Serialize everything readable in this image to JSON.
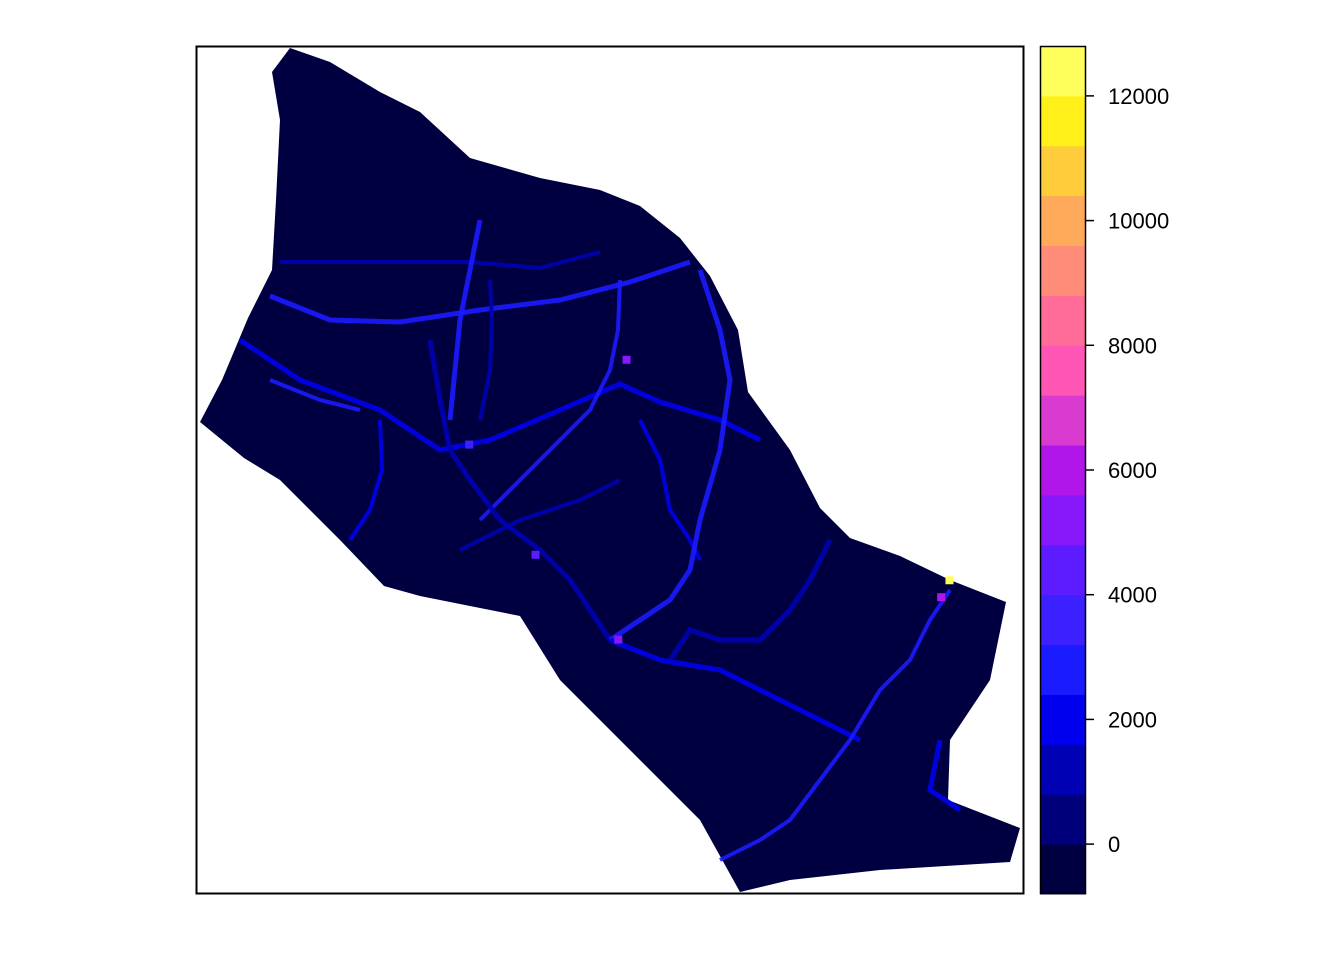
{
  "chart_data": {
    "type": "heatmap",
    "title": "",
    "xlabel": "",
    "ylabel": "",
    "legend_placement": "right",
    "grid": false,
    "colorbar": {
      "min": -800,
      "max": 12800,
      "step": 800,
      "colors": [
        "#000040",
        "#00007a",
        "#0000b4",
        "#0000ee",
        "#1b1bff",
        "#3d20ff",
        "#5c1cff",
        "#8718fa",
        "#b016ea",
        "#d93bd0",
        "#ff55b4",
        "#ff6c97",
        "#ff8c78",
        "#ffa95a",
        "#ffcc3c",
        "#fff01a",
        "#ffff5c"
      ],
      "ticks": [
        0,
        2000,
        4000,
        6000,
        8000,
        10000,
        12000
      ],
      "tick_labels": [
        "0",
        "2000",
        "4000",
        "6000",
        "8000",
        "10000",
        "12000"
      ]
    },
    "map": {
      "background_value_color": "#000040",
      "hotspots": [
        {
          "x": 0.52,
          "y": 0.37,
          "value": 5200
        },
        {
          "x": 0.41,
          "y": 0.6,
          "value": 4200
        },
        {
          "x": 0.51,
          "y": 0.7,
          "value": 5000
        },
        {
          "x": 0.33,
          "y": 0.47,
          "value": 3200
        },
        {
          "x": 0.91,
          "y": 0.63,
          "value": 12400
        },
        {
          "x": 0.9,
          "y": 0.65,
          "value": 5600
        }
      ]
    }
  }
}
